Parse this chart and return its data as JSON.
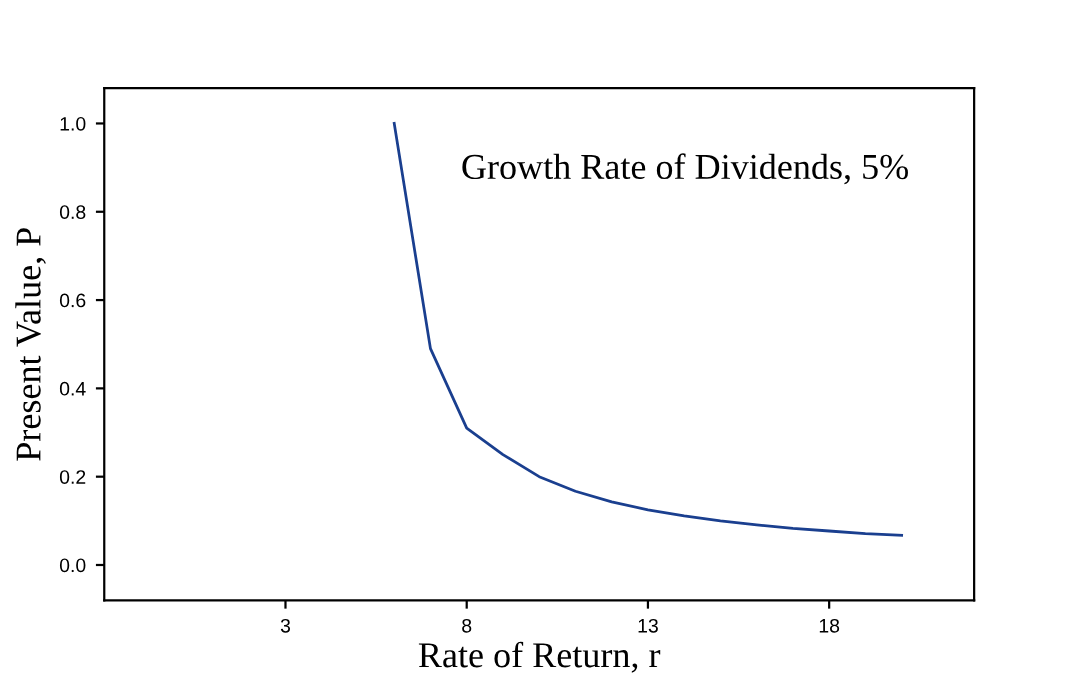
{
  "chart_data": {
    "type": "line",
    "xlabel": "Rate of Return, r",
    "ylabel": "Present Value, P",
    "annotations": [
      "Growth Rate of Dividends, 5%"
    ],
    "x": [
      6,
      7,
      8,
      9,
      10,
      11,
      12,
      13,
      14,
      15,
      16,
      17,
      18,
      19,
      20
    ],
    "series": [
      {
        "color": "#1a3f8f",
        "values": [
          1.0,
          0.49,
          0.31,
          0.25,
          0.2,
          0.167,
          0.143,
          0.125,
          0.111,
          0.1,
          0.091,
          0.083,
          0.077,
          0.071,
          0.067
        ]
      }
    ],
    "xlim": [
      -2,
      22
    ],
    "xticks": [
      3,
      8,
      13,
      18
    ],
    "ylim": [
      -0.08,
      1.08
    ],
    "yticks": [
      {
        "value": 0,
        "label": "0.0"
      },
      {
        "value": 0.2,
        "label": "0.2"
      },
      {
        "value": 0.4,
        "label": "0.4"
      },
      {
        "value": 0.6,
        "label": "0.6"
      },
      {
        "value": 0.8,
        "label": "0.8"
      },
      {
        "value": 1.0,
        "label": "1.0"
      }
    ],
    "grid": false,
    "legend": false,
    "marker": "none",
    "line_style": "solid"
  }
}
